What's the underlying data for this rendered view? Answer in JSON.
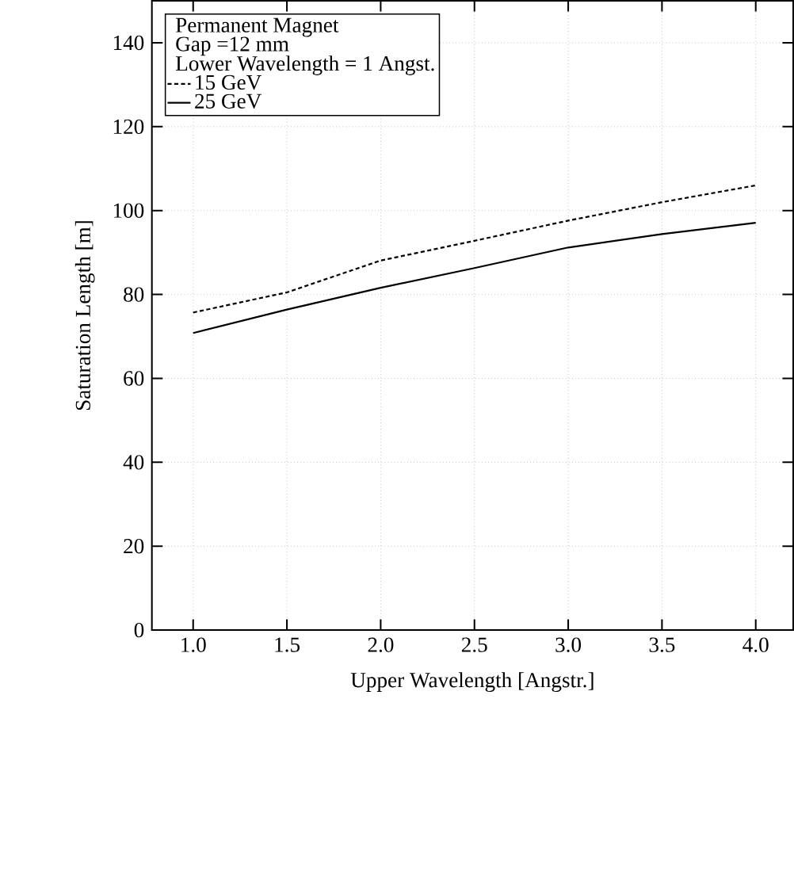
{
  "chart_data": {
    "type": "line",
    "xlabel": "Upper Wavelength [Angstr.]",
    "ylabel": "Saturation Length [m]",
    "annotations": [
      "Permanent Magnet",
      "Gap =12 mm",
      "Lower Wavelength = 1 Angst."
    ],
    "x": [
      1.0,
      1.5,
      2.0,
      2.5,
      3.0,
      3.5,
      4.0
    ],
    "series": [
      {
        "name": "15 GeV",
        "color": "#000000",
        "line_style": "dashed",
        "values": [
          75.7,
          80.5,
          88.1,
          92.8,
          97.6,
          102,
          106
        ]
      },
      {
        "name": "25 GeV",
        "color": "#000000",
        "line_style": "solid",
        "values": [
          70.8,
          76.4,
          81.6,
          86.3,
          91.2,
          94.4,
          97.1
        ]
      }
    ],
    "xlim": [
      0.78,
      4.2
    ],
    "ylim": [
      0,
      150
    ],
    "xticks": [
      {
        "value": 1.0,
        "label": "1.0"
      },
      {
        "value": 1.5,
        "label": "1.5"
      },
      {
        "value": 2.0,
        "label": "2.0"
      },
      {
        "value": 2.5,
        "label": "2.5"
      },
      {
        "value": 3.0,
        "label": "3.0"
      },
      {
        "value": 3.5,
        "label": "3.5"
      },
      {
        "value": 4.0,
        "label": "4.0"
      }
    ],
    "yticks": [
      0,
      20,
      40,
      60,
      80,
      100,
      120,
      140
    ],
    "grid": true,
    "legend": "top left",
    "marker": "none"
  }
}
